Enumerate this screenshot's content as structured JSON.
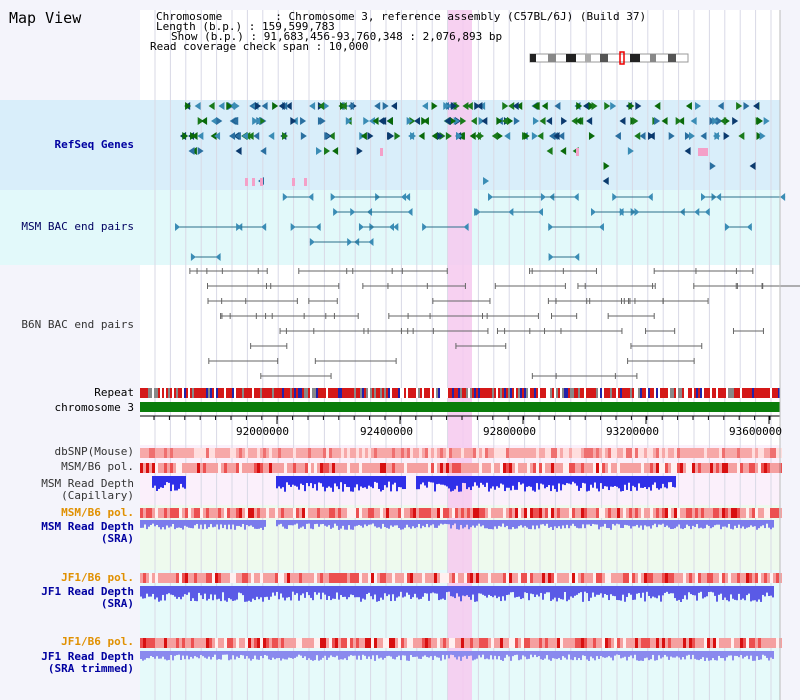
{
  "view": {
    "title": "Map View"
  },
  "info": {
    "chromosome_line": "Chromosome        : Chromosome 3, reference assembly (C57BL/6J) (Build 37)",
    "length_line": "Length (b.p.) : 159,599,783",
    "show_line": "Show (b.p.) : 91,683,456-93,760,348 : 2,076,893 bp",
    "coverage_line": "Read coverage check span : 10,000"
  },
  "tracks": {
    "refseq": "RefSeq Genes",
    "msm_bac": "MSM BAC end pairs",
    "b6n_bac": "B6N BAC end pairs",
    "repeat": "Repeat",
    "chromosome": "chromosome 3",
    "dbsnp": "dbSNP(Mouse)",
    "msm_pol_cap": "MSM/B6 pol.",
    "msm_depth_cap_1": "MSM Read Depth",
    "msm_depth_cap_2": "(Capillary)",
    "msm_pol_sra": "MSM/B6 pol.",
    "msm_depth_sra_1": "MSM Read Depth",
    "msm_depth_sra_2": "(SRA)",
    "jf1_pol_1": "JF1/B6 pol.",
    "jf1_depth_1": "JF1 Read Depth",
    "jf1_depth_sra": "(SRA)",
    "jf1_pol_2": "JF1/B6 pol.",
    "jf1_depth_2": "JF1 Read Depth",
    "jf1_depth_trim": "(SRA trimmed)"
  },
  "ruler": {
    "ticks": [
      "92000000",
      "92400000",
      "92800000",
      "93200000",
      "93600000"
    ]
  },
  "colors": {
    "highlight": "#f6c9ef",
    "refseq_bg": "#d9eefa",
    "msm_bac_bg": "#e2f9fa",
    "depth_blue": "#2f2fe8",
    "pol_red": "#e01818",
    "chromosome_green": "#0a7d0a",
    "label_blue": "#0000a0",
    "label_orange": "#e09000"
  }
}
